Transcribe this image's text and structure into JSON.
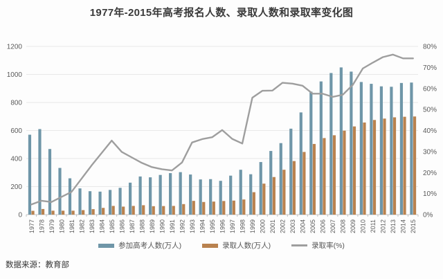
{
  "title": "1977年-2015年高考报名人数、录取人数和录取率变化图",
  "source": "数据来源：教育部",
  "colors": {
    "applicants_bar": "#6f96a8",
    "admitted_bar": "#b9824f",
    "rate_line": "#9e9e9e",
    "grid": "#e8e8e8",
    "axis_line": "#c2c2c2",
    "axis_text": "#595959",
    "title_text": "#3a3a3a"
  },
  "legend": [
    {
      "label": "参加高考人数(万人)",
      "type": "bar",
      "color_key": "applicants_bar"
    },
    {
      "label": "录取人数(万人)",
      "type": "bar",
      "color_key": "admitted_bar"
    },
    {
      "label": "录取率(%)",
      "type": "line",
      "color_key": "rate_line"
    }
  ],
  "axes": {
    "left": {
      "step": 200,
      "ticks": [
        "0",
        "200",
        "400",
        "600",
        "800",
        "1000",
        "1200"
      ]
    },
    "right": {
      "step": 10,
      "ticks": [
        "0%",
        "10%",
        "20%",
        "30%",
        "40%",
        "50%",
        "60%",
        "70%",
        "80%"
      ]
    }
  },
  "chart_data": {
    "type": "bar+line combo",
    "title": "1977年-2015年高考报名人数、录取人数和录取率变化图",
    "legend_position": "bottom",
    "grid": true,
    "left_axis": {
      "range": [
        0,
        1200
      ],
      "step": 200
    },
    "right_axis": {
      "range": [
        0,
        80
      ],
      "step": 10,
      "format": "percent"
    },
    "categories": [
      "1977",
      "1978",
      "1979",
      "1980",
      "1981",
      "1982",
      "1983",
      "1984",
      "1985",
      "1986",
      "1987",
      "1988",
      "1989",
      "1990",
      "1991",
      "1992",
      "1993",
      "1994",
      "1995",
      "1996",
      "1997",
      "1998",
      "1999",
      "2000",
      "2001",
      "2002",
      "2003",
      "2004",
      "2005",
      "2006",
      "2007",
      "2008",
      "2009",
      "2010",
      "2011",
      "2012",
      "2013",
      "2014",
      "2015"
    ],
    "series": [
      {
        "name": "参加高考人数(万人)",
        "type": "bar",
        "axis": "left",
        "values": [
          570,
          610,
          468,
          333,
          259,
          187,
          167,
          164,
          176,
          191,
          228,
          272,
          266,
          283,
          296,
          303,
          286,
          251,
          253,
          241,
          278,
          320,
          288,
          375,
          454,
          510,
          613,
          729,
          877,
          950,
          1010,
          1050,
          1020,
          946,
          933,
          915,
          912,
          939,
          942
        ]
      },
      {
        "name": "录取人数(万人)",
        "type": "bar",
        "axis": "left",
        "values": [
          27,
          40,
          28,
          28,
          28,
          32,
          39,
          48,
          62,
          57,
          62,
          67,
          60,
          61,
          62,
          75,
          98,
          90,
          93,
          97,
          100,
          108,
          160,
          221,
          268,
          320,
          382,
          447,
          504,
          546,
          566,
          599,
          629,
          657,
          675,
          685,
          694,
          698,
          700
        ]
      },
      {
        "name": "录取率(%)",
        "type": "line",
        "axis": "right",
        "values": [
          4.8,
          6.6,
          6.0,
          8.4,
          10.8,
          17.1,
          23.4,
          29.3,
          35.2,
          29.8,
          27.2,
          24.6,
          22.6,
          21.6,
          21.0,
          24.8,
          34.3,
          35.9,
          36.8,
          40.2,
          36.0,
          33.8,
          55.6,
          58.9,
          59.0,
          62.7,
          62.3,
          61.3,
          57.5,
          57.5,
          56.0,
          57.0,
          61.7,
          69.5,
          72.3,
          74.9,
          76.1,
          74.3,
          74.3
        ]
      }
    ]
  }
}
